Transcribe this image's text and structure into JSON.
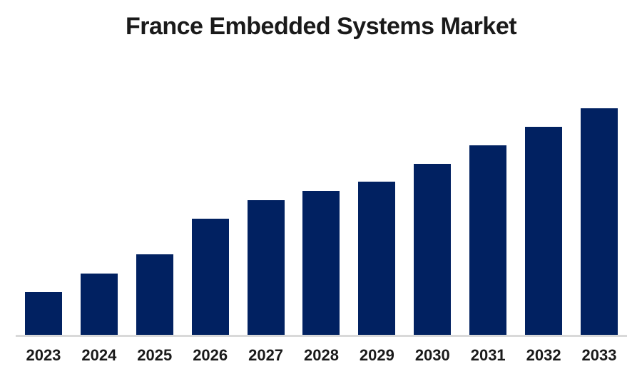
{
  "title": "France Embedded Systems Market",
  "chart_data": {
    "type": "bar",
    "title": "France Embedded Systems Market",
    "categories": [
      "2023",
      "2024",
      "2025",
      "2026",
      "2027",
      "2028",
      "2029",
      "2030",
      "2031",
      "2032",
      "2033"
    ],
    "values": [
      19.1,
      27.3,
      35.7,
      51.4,
      59.6,
      63.6,
      67.7,
      75.5,
      83.7,
      91.8,
      100
    ],
    "values_note": "relative bar heights estimated from pixels, tallest bar (2033) = 100; no numeric value axis shown in chart",
    "xlabel": "",
    "ylabel": "",
    "ylim": [
      0,
      100
    ],
    "grid": false,
    "legend": false,
    "value_axis_visible": false,
    "colors": {
      "bar": "#012161",
      "axis_line": "#d9d9d9",
      "background": "#ffffff",
      "title_text": "#1a1a1a",
      "label_text": "#1a1a1a"
    }
  }
}
